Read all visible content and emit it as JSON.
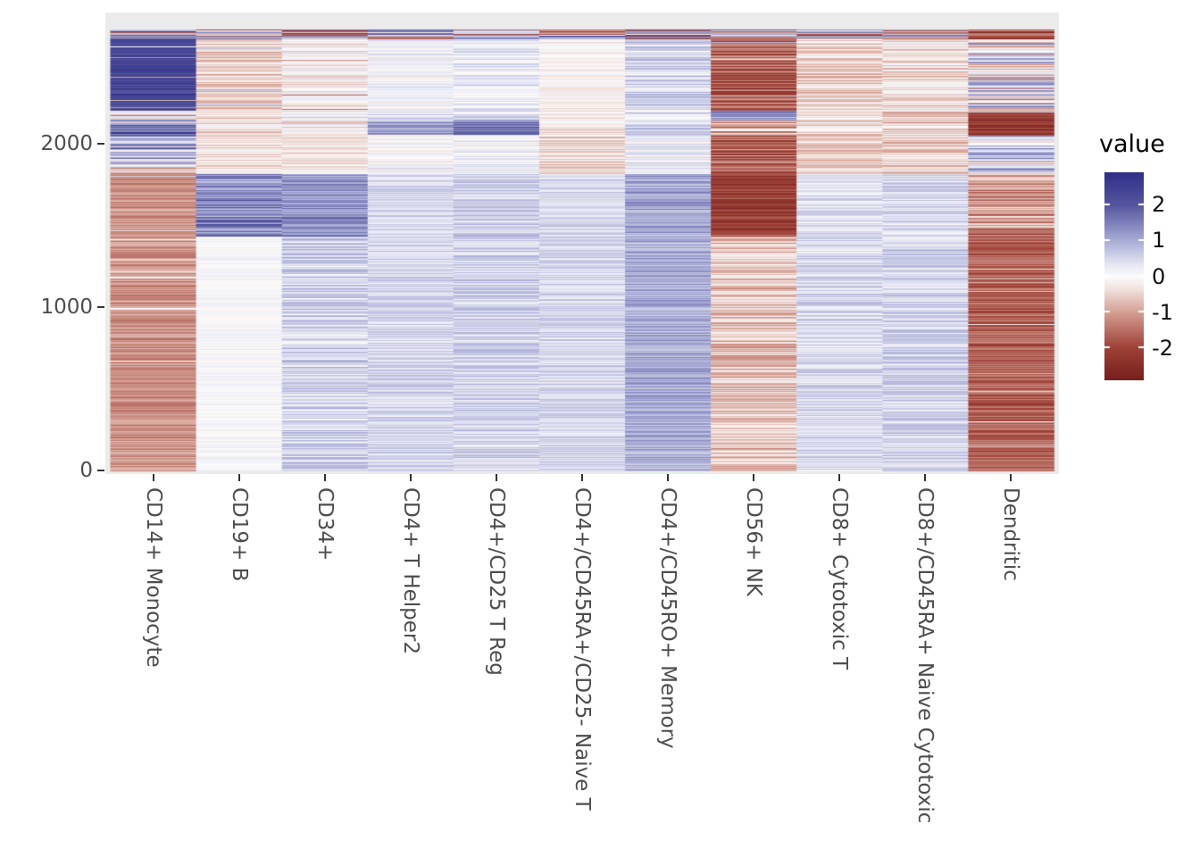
{
  "figure": {
    "background": "#FFFFFF",
    "panel_background": "#EBEBEB",
    "axis_text_color": "#4D4D4D",
    "tick_color": "#333333"
  },
  "legend": {
    "title": "value",
    "tick_labels": [
      "2",
      "1",
      "0",
      "-1",
      "-2"
    ],
    "tick_values": [
      2,
      1,
      0,
      -1,
      -2
    ],
    "range": [
      -2.9,
      2.9
    ]
  },
  "chart_data": {
    "type": "heatmap",
    "title": "",
    "xlabel": "",
    "ylabel": "",
    "legend_title": "value",
    "legend_ticks": [
      2,
      1,
      0,
      -1,
      -2
    ],
    "x_categories": [
      "CD14+ Monocyte",
      "CD19+ B",
      "CD34+",
      "CD4+ T Helper2",
      "CD4+/CD25 T Reg",
      "CD4+/CD45RA+/CD25- Naive T",
      "CD4+/CD45RO+ Memory",
      "CD56+ NK",
      "CD8+ Cytotoxic T",
      "CD8+/CD45RA+ Naive Cytotoxic",
      "Dendritic"
    ],
    "y_axis": {
      "ticks": [
        0,
        1000,
        2000
      ],
      "range": [
        0,
        2700
      ]
    },
    "value_range": [
      -2.9,
      2.9
    ],
    "grid": false,
    "legend_position": "right",
    "colormap_anchors": [
      [
        -2.9,
        "#771F1D"
      ],
      [
        -2.0,
        "#9E4137"
      ],
      [
        -1.0,
        "#D5A095"
      ],
      [
        -0.35,
        "#F2E3DF"
      ],
      [
        0.0,
        "#FCFCFC"
      ],
      [
        0.35,
        "#E4E5F2"
      ],
      [
        1.0,
        "#A8ABD5"
      ],
      [
        2.0,
        "#55559F"
      ],
      [
        2.9,
        "#2F2F87"
      ]
    ],
    "columns_note": "segments = [row_from, row_to, mean_value, stripe_noise_amp, optional_spike_amp, optional_spike_prob] estimated from pixels",
    "columns": [
      {
        "label": "CD14+ Monocyte",
        "segments": [
          [
            0,
            1830,
            -1.15,
            0.4,
            1.8,
            0.02
          ],
          [
            1830,
            1875,
            0.2,
            1.5
          ],
          [
            1875,
            2060,
            0.85,
            1.3
          ],
          [
            2060,
            2130,
            1.9,
            0.9
          ],
          [
            2130,
            2205,
            0.3,
            1.3
          ],
          [
            2205,
            2640,
            2.4,
            0.4,
            -4.6,
            0.05
          ],
          [
            2640,
            2700,
            0.2,
            2.7
          ]
        ]
      },
      {
        "label": "CD19+ B",
        "segments": [
          [
            0,
            1435,
            0.05,
            0.22
          ],
          [
            1435,
            1820,
            1.45,
            0.8
          ],
          [
            1820,
            2060,
            -0.3,
            0.45
          ],
          [
            2060,
            2205,
            -0.35,
            0.55
          ],
          [
            2205,
            2640,
            -0.55,
            0.5,
            1.5,
            0.03
          ],
          [
            2640,
            2700,
            0.0,
            2.4
          ]
        ]
      },
      {
        "label": "CD34+",
        "segments": [
          [
            0,
            1435,
            0.55,
            0.55
          ],
          [
            1435,
            1820,
            1.3,
            0.55
          ],
          [
            1820,
            2060,
            -0.35,
            0.4
          ],
          [
            2060,
            2205,
            -0.15,
            0.6
          ],
          [
            2205,
            2640,
            -0.15,
            0.55,
            -1.6,
            0.04
          ],
          [
            2640,
            2700,
            0.0,
            2.4
          ]
        ]
      },
      {
        "label": "CD4+ T Helper2",
        "segments": [
          [
            0,
            1435,
            0.5,
            0.35
          ],
          [
            1435,
            1820,
            0.45,
            0.35
          ],
          [
            1820,
            2060,
            0.05,
            0.45
          ],
          [
            2060,
            2140,
            1.1,
            0.6
          ],
          [
            2140,
            2205,
            0.3,
            0.55
          ],
          [
            2205,
            2640,
            0.15,
            0.4
          ],
          [
            2640,
            2700,
            0.0,
            2.2
          ]
        ]
      },
      {
        "label": "CD4+/CD25 T Reg",
        "segments": [
          [
            0,
            1435,
            0.55,
            0.4
          ],
          [
            1435,
            1820,
            0.6,
            0.4
          ],
          [
            1820,
            2060,
            0.15,
            0.45
          ],
          [
            2060,
            2150,
            1.5,
            0.65
          ],
          [
            2150,
            2205,
            0.4,
            0.6
          ],
          [
            2205,
            2640,
            0.25,
            0.45
          ],
          [
            2640,
            2700,
            0.0,
            2.2
          ]
        ]
      },
      {
        "label": "CD4+/CD45RA+/CD25- Naive T",
        "segments": [
          [
            0,
            1435,
            0.5,
            0.35
          ],
          [
            1435,
            1820,
            0.45,
            0.35
          ],
          [
            1820,
            2060,
            -0.5,
            0.5
          ],
          [
            2060,
            2205,
            -0.2,
            0.5
          ],
          [
            2205,
            2640,
            -0.1,
            0.35
          ],
          [
            2640,
            2700,
            0.0,
            2.2
          ]
        ]
      },
      {
        "label": "CD4+/CD45RO+ Memory",
        "segments": [
          [
            0,
            1435,
            1.0,
            0.45
          ],
          [
            1435,
            1820,
            1.1,
            0.5
          ],
          [
            1820,
            2060,
            0.2,
            0.45
          ],
          [
            2060,
            2205,
            0.45,
            0.6
          ],
          [
            2205,
            2640,
            0.5,
            0.5
          ],
          [
            2640,
            2700,
            0.0,
            2.2
          ]
        ]
      },
      {
        "label": "CD56+ NK",
        "segments": [
          [
            0,
            1435,
            -0.7,
            0.6
          ],
          [
            1435,
            1820,
            -2.1,
            0.5
          ],
          [
            1820,
            2060,
            -1.6,
            0.8
          ],
          [
            2060,
            2145,
            -1.0,
            1.0
          ],
          [
            2145,
            2205,
            1.2,
            0.9
          ],
          [
            2205,
            2640,
            -1.7,
            0.8,
            2.6,
            0.04
          ],
          [
            2640,
            2700,
            -0.3,
            2.6
          ]
        ]
      },
      {
        "label": "CD8+ Cytotoxic T",
        "segments": [
          [
            0,
            1435,
            0.45,
            0.4
          ],
          [
            1435,
            1820,
            0.35,
            0.4
          ],
          [
            1820,
            2060,
            -0.5,
            0.5
          ],
          [
            2060,
            2205,
            -0.4,
            0.6
          ],
          [
            2205,
            2640,
            -0.5,
            0.55
          ],
          [
            2640,
            2700,
            0.0,
            2.3
          ]
        ]
      },
      {
        "label": "CD8+/CD45RA+ Naive Cytotoxic",
        "segments": [
          [
            0,
            1435,
            0.55,
            0.4
          ],
          [
            1435,
            1820,
            0.5,
            0.4
          ],
          [
            1820,
            2060,
            -0.55,
            0.55
          ],
          [
            2060,
            2205,
            -0.6,
            0.7
          ],
          [
            2205,
            2640,
            -0.35,
            0.6
          ],
          [
            2640,
            2700,
            0.0,
            2.4
          ]
        ]
      },
      {
        "label": "Dendritic",
        "segments": [
          [
            0,
            1480,
            -1.65,
            0.5,
            1.6,
            0.03
          ],
          [
            1480,
            1820,
            -1.0,
            0.85
          ],
          [
            1820,
            2055,
            0.5,
            1.2
          ],
          [
            2055,
            2195,
            -2.2,
            0.5
          ],
          [
            2195,
            2640,
            0.2,
            1.5
          ],
          [
            2640,
            2700,
            -2.0,
            1.0
          ]
        ]
      }
    ]
  }
}
